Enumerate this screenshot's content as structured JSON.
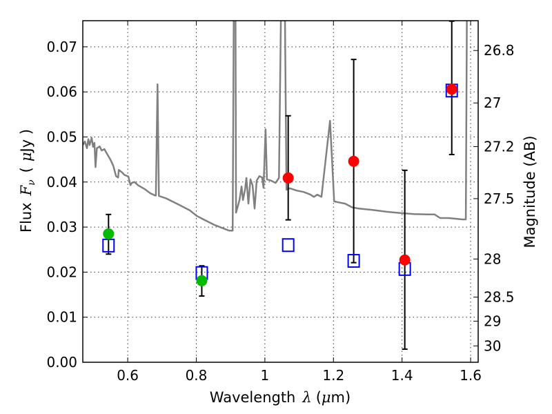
{
  "chart_data": {
    "type": "scatter",
    "xlabel_parts": [
      "Wavelength",
      "λ",
      "(",
      "μ",
      "m)"
    ],
    "ylabel_parts": [
      "Flux",
      "F",
      "ν",
      "(",
      "μ",
      "Jy )"
    ],
    "y2label": "Magnitude (AB)",
    "xlim": [
      0.469,
      1.622
    ],
    "ylim": [
      0,
      0.0758
    ],
    "grid": true,
    "x_ticks": [
      0.6,
      0.8,
      1.0,
      1.2,
      1.4,
      1.6
    ],
    "x_tick_labels": [
      "0.6",
      "0.8",
      "1",
      "1.2",
      "1.4",
      "1.6"
    ],
    "y_ticks": [
      0,
      0.01,
      0.02,
      0.03,
      0.04,
      0.05,
      0.06,
      0.07
    ],
    "y_tick_labels": [
      "0.00",
      "0.01",
      "0.02",
      "0.03",
      "0.04",
      "0.05",
      "0.06",
      "0.07"
    ],
    "y2_ticks": [
      26.8,
      27,
      27.2,
      27.5,
      28,
      28.5,
      29,
      30
    ],
    "y2_tick_labels": [
      "26.8",
      "27",
      "27.2",
      "27.5",
      "28",
      "28.5",
      "29",
      "30"
    ],
    "colors": {
      "spectrum": "#808080",
      "green": "#00bb00",
      "red": "#ff0000",
      "model": "#0000ff",
      "errorbar": "#000000"
    },
    "series": [
      {
        "name": "spectrum",
        "kind": "line",
        "x": [
          0.469,
          0.475,
          0.481,
          0.485,
          0.489,
          0.495,
          0.499,
          0.503,
          0.506,
          0.51,
          0.518,
          0.524,
          0.532,
          0.54,
          0.55,
          0.558,
          0.566,
          0.572,
          0.574,
          0.584,
          0.59,
          0.602,
          0.608,
          0.612,
          0.62,
          0.63,
          0.65,
          0.666,
          0.68,
          0.682,
          0.687,
          0.691,
          0.711,
          0.751,
          0.781,
          0.801,
          0.821,
          0.852,
          0.872,
          0.896,
          0.906,
          0.91,
          0.914,
          0.916,
          0.926,
          0.932,
          0.936,
          0.942,
          0.946,
          0.952,
          0.958,
          0.964,
          0.97,
          0.976,
          0.984,
          0.992,
          0.996,
          1.002,
          1.006,
          1.018,
          1.031,
          1.041,
          1.049,
          1.057,
          1.063,
          1.073,
          1.093,
          1.113,
          1.133,
          1.143,
          1.153,
          1.165,
          1.19,
          1.202,
          1.214,
          1.234,
          1.254,
          1.274,
          1.314,
          1.355,
          1.395,
          1.435,
          1.475,
          1.495,
          1.511,
          1.536,
          1.576,
          1.586,
          1.59
        ],
        "y": [
          0.0482,
          0.049,
          0.0475,
          0.0495,
          0.0482,
          0.0498,
          0.0478,
          0.0487,
          0.0433,
          0.0475,
          0.0479,
          0.047,
          0.0473,
          0.0462,
          0.0449,
          0.0436,
          0.0413,
          0.041,
          0.0427,
          0.0421,
          0.0416,
          0.0412,
          0.0393,
          0.0398,
          0.04,
          0.0393,
          0.0384,
          0.0375,
          0.037,
          0.037,
          0.0617,
          0.0369,
          0.0364,
          0.0349,
          0.0337,
          0.0325,
          0.0317,
          0.0305,
          0.0299,
          0.0292,
          0.0292,
          0.09,
          0.09,
          0.0332,
          0.036,
          0.039,
          0.036,
          0.0383,
          0.0409,
          0.0352,
          0.0406,
          0.0393,
          0.0341,
          0.0403,
          0.0413,
          0.041,
          0.0387,
          0.0517,
          0.0406,
          0.0403,
          0.0398,
          0.0409,
          0.09,
          0.09,
          0.0383,
          0.0386,
          0.0381,
          0.0378,
          0.0372,
          0.0367,
          0.0372,
          0.0367,
          0.0536,
          0.0357,
          0.0355,
          0.0352,
          0.0344,
          0.0341,
          0.0338,
          0.0334,
          0.0331,
          0.0329,
          0.0328,
          0.0328,
          0.032,
          0.032,
          0.0317,
          0.0317,
          0.09
        ]
      },
      {
        "name": "observed (green)",
        "kind": "errorbar",
        "color": "green",
        "x": [
          0.544,
          0.816
        ],
        "y": [
          0.0285,
          0.0181
        ],
        "ylo": [
          0.024,
          0.0147
        ],
        "yhi": [
          0.0328,
          0.0214
        ]
      },
      {
        "name": "observed (red)",
        "kind": "errorbar",
        "color": "red",
        "x": [
          1.068,
          1.259,
          1.408,
          1.545
        ],
        "y": [
          0.0409,
          0.0446,
          0.0227,
          0.0606
        ],
        "ylo": [
          0.0316,
          0.0221,
          0.0029,
          0.0461
        ],
        "yhi": [
          0.0547,
          0.0672,
          0.0426,
          0.0757
        ]
      },
      {
        "name": "model photometry",
        "kind": "square",
        "color": "model",
        "x": [
          0.544,
          0.816,
          1.068,
          1.259,
          1.408,
          1.545
        ],
        "y": [
          0.0259,
          0.0198,
          0.026,
          0.0225,
          0.0207,
          0.0603
        ]
      }
    ]
  }
}
